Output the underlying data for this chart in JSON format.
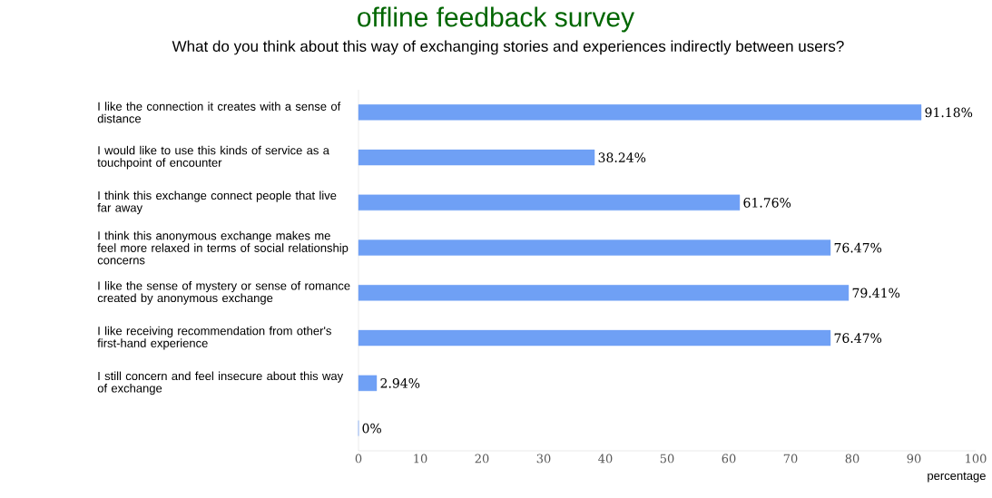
{
  "chart_data": {
    "type": "bar",
    "orientation": "horizontal",
    "title": "offline feedback survey",
    "subtitle": "What do you think about this way of exchanging stories and experiences indirectly between users?",
    "xlabel": "percentage",
    "categories": [
      "I like the connection it creates with a sense of distance",
      "I would like to use this kinds of service as a touchpoint of encounter",
      "I think this exchange connect people that live far away",
      "I think this anonymous exchange makes me feel more relaxed in terms of social relationship concerns",
      "I like the sense of mystery or sense of romance created by anonymous exchange",
      "I like receiving recommendation from other's first-hand experience",
      "I still concern and feel insecure about this way of exchange",
      null
    ],
    "values": [
      91.18,
      38.24,
      61.76,
      76.47,
      79.41,
      76.47,
      2.94,
      0
    ],
    "value_labels": [
      "91.18%",
      "38.24%",
      "61.76%",
      "76.47%",
      "79.41%",
      "76.47%",
      "2.94%",
      "0%"
    ],
    "color": "#6fa0f5",
    "xlim": [
      0,
      100
    ],
    "xticks": [
      0,
      10,
      20,
      30,
      40,
      50,
      60,
      70,
      80,
      90,
      100
    ],
    "grid": false
  }
}
